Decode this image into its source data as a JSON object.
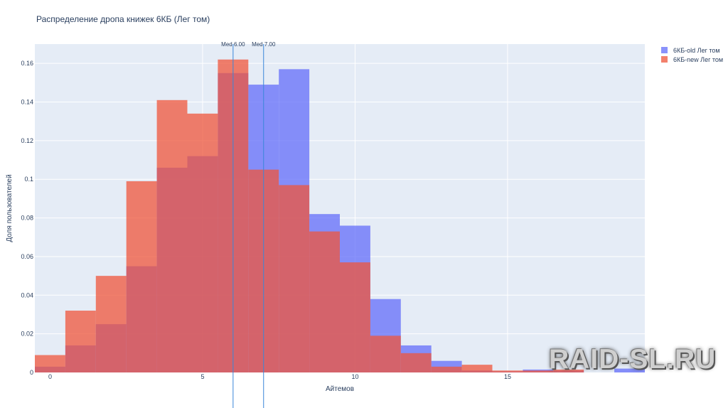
{
  "chart_data": {
    "type": "bar",
    "title": "Распределение дропа книжек 6КБ (Лег том)",
    "xlabel": "Айтемов",
    "ylabel": "Доля пользователей",
    "xlim": [
      -0.5,
      19.5
    ],
    "ylim": [
      0,
      0.17
    ],
    "xticks": [
      0,
      5,
      10,
      15
    ],
    "yticks": [
      0,
      0.02,
      0.04,
      0.06,
      0.08,
      0.1,
      0.12,
      0.14,
      0.16
    ],
    "bin_width": 1,
    "x": [
      0,
      1,
      2,
      3,
      4,
      5,
      6,
      7,
      8,
      9,
      10,
      11,
      12,
      13,
      14,
      15,
      16,
      17,
      18,
      19
    ],
    "series": [
      {
        "name": "6КБ-old Лег том",
        "color": "#636efa",
        "values": [
          0.003,
          0.014,
          0.025,
          0.055,
          0.106,
          0.112,
          0.155,
          0.149,
          0.157,
          0.082,
          0.076,
          0.038,
          0.014,
          0.006,
          0.001,
          0.0005,
          0.0015,
          0.001,
          0.0,
          0.002
        ]
      },
      {
        "name": "6КБ-new Лег том",
        "color": "#ef553b",
        "values": [
          0.009,
          0.032,
          0.05,
          0.099,
          0.141,
          0.134,
          0.162,
          0.105,
          0.097,
          0.073,
          0.057,
          0.019,
          0.01,
          0.003,
          0.004,
          0.001,
          0.001,
          0.0015,
          0.0,
          0.0
        ]
      }
    ],
    "medians": [
      {
        "label": "Med 6.00",
        "x": 6.0
      },
      {
        "label": "Med 7.00",
        "x": 7.0
      }
    ],
    "legend": "top-right",
    "grid": true,
    "barmode": "overlay"
  },
  "watermark": "RAID-SL.RU"
}
